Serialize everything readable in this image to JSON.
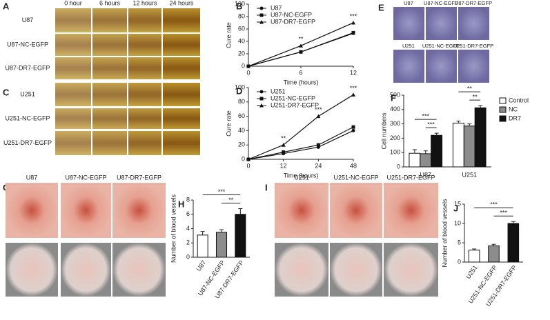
{
  "panel_labels": [
    "A",
    "B",
    "C",
    "D",
    "E",
    "F",
    "G",
    "H",
    "I",
    "J"
  ],
  "wound_healing": {
    "time_points": [
      "0 hour",
      "6 hours",
      "12 hours",
      "24 hours"
    ],
    "U87_rows": [
      "U87",
      "U87-NC-EGFP",
      "U87-DR7-EGFP"
    ],
    "U251_rows": [
      "U251",
      "U251-NC-EGFP",
      "U251-DR7-EGFP"
    ]
  },
  "transwell": {
    "labels": [
      "U87",
      "U87-NC-EGFP",
      "U87-DR7-EGFP",
      "U251",
      "U251-NC-EGFP",
      "U251-DR7-EGFP"
    ]
  },
  "cam_U87": {
    "labels": [
      "U87",
      "U87-NC-EGFP",
      "U87-DR7-EGFP"
    ]
  },
  "cam_U251": {
    "labels": [
      "U251",
      "U251-NC-EGFP",
      "U251-DR7-EGFP"
    ]
  },
  "chart_data": [
    {
      "type": "line",
      "xlabel": "Time (hours)",
      "ylabel": "Cure rate",
      "x": [
        0,
        6,
        12
      ],
      "xlim": [
        0,
        12
      ],
      "xticks": [
        0,
        6,
        12
      ],
      "ylim": [
        0,
        100
      ],
      "yticks": [
        0,
        20,
        40,
        60,
        80,
        100
      ],
      "legend": "upper left",
      "series": [
        {
          "name": "U87",
          "color": "#111111",
          "marker": "circle",
          "values": [
            0,
            23,
            53
          ]
        },
        {
          "name": "U87-NC-EGFP",
          "color": "#111111",
          "marker": "square",
          "values": [
            0,
            23,
            54
          ]
        },
        {
          "name": "U87-DR7-EGFP",
          "color": "#111111",
          "marker": "triangle",
          "values": [
            0,
            33,
            70
          ]
        }
      ],
      "annotations": [
        null,
        "**",
        "***"
      ]
    },
    {
      "type": "line",
      "xlabel": "Time (hours)",
      "ylabel": "Cure rate",
      "categories": [
        "0",
        "12",
        "24",
        "48"
      ],
      "ylim": [
        0,
        100
      ],
      "yticks": [
        0,
        20,
        40,
        60,
        80,
        100
      ],
      "legend": "upper left",
      "series": [
        {
          "name": "U251",
          "color": "#111111",
          "marker": "circle",
          "values": [
            0,
            8,
            17,
            40
          ]
        },
        {
          "name": "U251-NC-EGFP",
          "color": "#111111",
          "marker": "square",
          "values": [
            0,
            10,
            20,
            45
          ]
        },
        {
          "name": "U251-DR7-EGFP",
          "color": "#111111",
          "marker": "triangle",
          "values": [
            0,
            20,
            60,
            90
          ]
        }
      ],
      "annotations": [
        null,
        "**",
        "***",
        "***"
      ]
    },
    {
      "type": "bar",
      "ylabel": "Cell numbers",
      "categories": [
        "U87",
        "U251"
      ],
      "ylim": [
        0,
        500
      ],
      "yticks": [
        0,
        100,
        200,
        300,
        400,
        500
      ],
      "legend": "right",
      "series": [
        {
          "name": "Control",
          "color": "#ffffff",
          "values": [
            95,
            305
          ],
          "errors": [
            25,
            15
          ]
        },
        {
          "name": "NC",
          "color": "#8c8c8c",
          "values": [
            92,
            285
          ],
          "errors": [
            20,
            15
          ]
        },
        {
          "name": "DR7",
          "color": "#111111",
          "values": [
            220,
            412
          ],
          "errors": [
            15,
            15
          ]
        }
      ],
      "significance": [
        {
          "label": "***",
          "group": "U87",
          "from": "Control",
          "to": "DR7"
        },
        {
          "label": "***",
          "group": "U87",
          "from": "NC",
          "to": "DR7"
        },
        {
          "label": "**",
          "group": "U251",
          "from": "Control",
          "to": "DR7"
        },
        {
          "label": "**",
          "group": "U251",
          "from": "NC",
          "to": "DR7"
        }
      ]
    },
    {
      "type": "bar",
      "ylabel": "Number of blood vessels",
      "categories": [
        "U87",
        "U87-NC-EGFP",
        "U87-DR7-EGFP"
      ],
      "values": [
        3.1,
        3.5,
        6.0
      ],
      "errors": [
        0.5,
        0.35,
        0.8
      ],
      "colors": [
        "#ffffff",
        "#8c8c8c",
        "#111111"
      ],
      "ylim": [
        0,
        8
      ],
      "yticks": [
        0,
        2,
        4,
        6,
        8
      ],
      "significance": [
        {
          "label": "***",
          "from": "U87",
          "to": "U87-DR7-EGFP"
        },
        {
          "label": "**",
          "from": "U87-NC-EGFP",
          "to": "U87-DR7-EGFP"
        }
      ]
    },
    {
      "type": "bar",
      "ylabel": "Number of blood vessels",
      "categories": [
        "U251",
        "U251-NC-EGFP",
        "U251-DR7-EGFP"
      ],
      "values": [
        3.1,
        4.2,
        10.0
      ],
      "errors": [
        0.3,
        0.4,
        0.5
      ],
      "colors": [
        "#ffffff",
        "#8c8c8c",
        "#111111"
      ],
      "ylim": [
        0,
        15
      ],
      "yticks": [
        0,
        5,
        10,
        15
      ],
      "significance": [
        {
          "label": "***",
          "from": "U251",
          "to": "U251-DR7-EGFP"
        },
        {
          "label": "***",
          "from": "U251-NC-EGFP",
          "to": "U251-DR7-EGFP"
        }
      ]
    }
  ]
}
